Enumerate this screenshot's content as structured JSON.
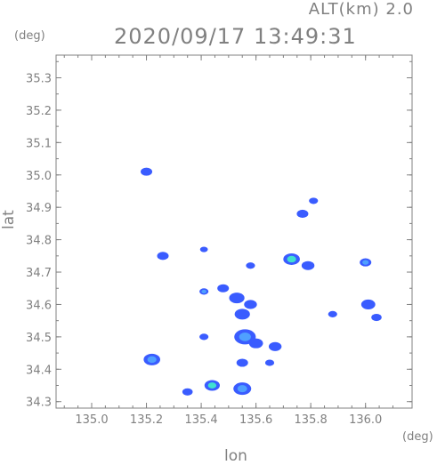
{
  "header": {
    "altitude_label": "ALT(km)  2.0",
    "timestamp": "2020/09/17 13:49:31"
  },
  "axes": {
    "y_unit": "(deg)",
    "x_unit": "(deg)",
    "x_title": "lon",
    "y_title": "lat",
    "x_ticks": [
      "135.0",
      "135.2",
      "135.4",
      "135.6",
      "135.8",
      "136.0"
    ],
    "y_ticks": [
      "34.3",
      "34.4",
      "34.5",
      "34.6",
      "34.7",
      "34.8",
      "34.9",
      "35.0",
      "35.1",
      "35.2",
      "35.3"
    ],
    "x_range": [
      134.87,
      136.17
    ],
    "y_range": [
      34.28,
      35.37
    ],
    "grid": true
  },
  "colors": {
    "axis": "#808080",
    "echo_weak": "#3a5cff",
    "echo_mid": "#4fa0ff",
    "echo_strong": "#40e0d0"
  },
  "echoes": [
    {
      "lon": 135.2,
      "lat": 35.01,
      "size": 0.5,
      "level": "weak"
    },
    {
      "lon": 135.77,
      "lat": 34.88,
      "size": 0.5,
      "level": "weak"
    },
    {
      "lon": 135.81,
      "lat": 34.92,
      "size": 0.3,
      "level": "weak"
    },
    {
      "lon": 135.26,
      "lat": 34.75,
      "size": 0.5,
      "level": "weak"
    },
    {
      "lon": 135.73,
      "lat": 34.74,
      "size": 0.9,
      "level": "strong"
    },
    {
      "lon": 135.79,
      "lat": 34.72,
      "size": 0.6,
      "level": "weak"
    },
    {
      "lon": 136.0,
      "lat": 34.73,
      "size": 0.5,
      "level": "mid"
    },
    {
      "lon": 136.01,
      "lat": 34.6,
      "size": 0.7,
      "level": "weak"
    },
    {
      "lon": 136.04,
      "lat": 34.56,
      "size": 0.4,
      "level": "weak"
    },
    {
      "lon": 135.88,
      "lat": 34.57,
      "size": 0.3,
      "level": "weak"
    },
    {
      "lon": 135.41,
      "lat": 34.64,
      "size": 0.3,
      "level": "mid"
    },
    {
      "lon": 135.48,
      "lat": 34.65,
      "size": 0.5,
      "level": "weak"
    },
    {
      "lon": 135.53,
      "lat": 34.62,
      "size": 0.8,
      "level": "weak"
    },
    {
      "lon": 135.58,
      "lat": 34.6,
      "size": 0.6,
      "level": "weak"
    },
    {
      "lon": 135.55,
      "lat": 34.57,
      "size": 0.8,
      "level": "weak"
    },
    {
      "lon": 135.56,
      "lat": 34.5,
      "size": 1.3,
      "level": "mid"
    },
    {
      "lon": 135.6,
      "lat": 34.48,
      "size": 0.7,
      "level": "weak"
    },
    {
      "lon": 135.67,
      "lat": 34.47,
      "size": 0.6,
      "level": "weak"
    },
    {
      "lon": 135.41,
      "lat": 34.5,
      "size": 0.3,
      "level": "weak"
    },
    {
      "lon": 135.55,
      "lat": 34.42,
      "size": 0.5,
      "level": "weak"
    },
    {
      "lon": 135.65,
      "lat": 34.42,
      "size": 0.3,
      "level": "weak"
    },
    {
      "lon": 135.22,
      "lat": 34.43,
      "size": 0.9,
      "level": "mid"
    },
    {
      "lon": 135.55,
      "lat": 34.34,
      "size": 1.0,
      "level": "mid"
    },
    {
      "lon": 135.44,
      "lat": 34.35,
      "size": 0.8,
      "level": "strong"
    },
    {
      "lon": 135.35,
      "lat": 34.33,
      "size": 0.4,
      "level": "weak"
    },
    {
      "lon": 135.41,
      "lat": 34.77,
      "size": 0.2,
      "level": "weak"
    },
    {
      "lon": 135.58,
      "lat": 34.72,
      "size": 0.3,
      "level": "weak"
    }
  ]
}
